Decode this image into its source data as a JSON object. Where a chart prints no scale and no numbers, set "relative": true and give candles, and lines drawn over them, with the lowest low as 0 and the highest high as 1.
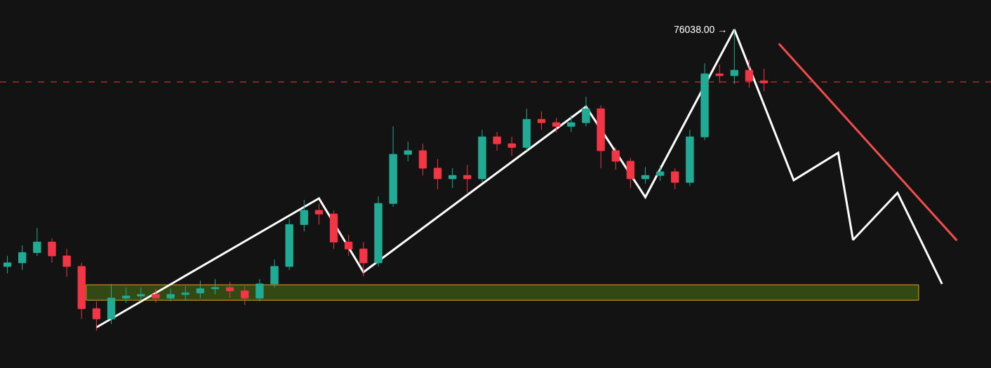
{
  "chart_data": {
    "type": "candlestick",
    "relative": true,
    "categories": [
      null,
      null,
      null,
      null,
      null,
      null,
      null,
      null,
      null,
      null,
      null,
      null,
      null,
      null,
      null,
      null,
      null,
      null,
      null,
      null,
      null,
      null,
      null,
      null,
      null,
      null,
      null,
      null,
      null,
      null,
      null,
      null,
      null,
      null,
      null,
      null,
      null,
      null,
      null,
      null,
      null,
      null,
      null,
      null,
      null,
      null,
      null,
      null,
      null,
      null,
      null,
      null,
      null,
      null,
      null,
      null,
      null,
      null,
      null,
      null,
      null,
      null,
      null,
      null,
      null,
      null
    ],
    "ohlc": [
      [
        0.214,
        0.249,
        0.191,
        0.226
      ],
      [
        0.226,
        0.284,
        0.202,
        0.26
      ],
      [
        0.26,
        0.342,
        0.249,
        0.295
      ],
      [
        0.295,
        0.307,
        0.226,
        0.249
      ],
      [
        0.249,
        0.272,
        0.179,
        0.214
      ],
      [
        0.214,
        0.226,
        0.04,
        0.074
      ],
      [
        0.074,
        0.098,
        0,
        0.04
      ],
      [
        0.04,
        0.156,
        0.023,
        0.109
      ],
      [
        0.109,
        0.144,
        0.093,
        0.116
      ],
      [
        0.116,
        0.144,
        0.098,
        0.121
      ],
      [
        0.121,
        0.14,
        0.093,
        0.109
      ],
      [
        0.109,
        0.14,
        0.098,
        0.121
      ],
      [
        0.121,
        0.149,
        0.102,
        0.126
      ],
      [
        0.126,
        0.167,
        0.109,
        0.14
      ],
      [
        0.14,
        0.172,
        0.121,
        0.144
      ],
      [
        0.144,
        0.163,
        0.109,
        0.133
      ],
      [
        0.133,
        0.149,
        0.086,
        0.109
      ],
      [
        0.109,
        0.172,
        0.098,
        0.156
      ],
      [
        0.156,
        0.237,
        0.144,
        0.214
      ],
      [
        0.214,
        0.372,
        0.202,
        0.353
      ],
      [
        0.353,
        0.435,
        0.33,
        0.4
      ],
      [
        0.4,
        0.423,
        0.353,
        0.388
      ],
      [
        0.388,
        0.4,
        0.272,
        0.295
      ],
      [
        0.295,
        0.319,
        0.249,
        0.272
      ],
      [
        0.272,
        0.295,
        0.181,
        0.226
      ],
      [
        0.226,
        0.447,
        0.214,
        0.423
      ],
      [
        0.423,
        0.679,
        0.412,
        0.586
      ],
      [
        0.586,
        0.628,
        0.563,
        0.598
      ],
      [
        0.598,
        0.621,
        0.516,
        0.54
      ],
      [
        0.54,
        0.57,
        0.47,
        0.505
      ],
      [
        0.505,
        0.54,
        0.474,
        0.516
      ],
      [
        0.516,
        0.551,
        0.458,
        0.505
      ],
      [
        0.505,
        0.667,
        0.493,
        0.644
      ],
      [
        0.644,
        0.66,
        0.598,
        0.621
      ],
      [
        0.621,
        0.644,
        0.581,
        0.609
      ],
      [
        0.609,
        0.737,
        0.598,
        0.702
      ],
      [
        0.702,
        0.728,
        0.667,
        0.691
      ],
      [
        0.691,
        0.707,
        0.658,
        0.679
      ],
      [
        0.679,
        0.716,
        0.66,
        0.691
      ],
      [
        0.691,
        0.777,
        0.679,
        0.737
      ],
      [
        0.737,
        0.749,
        0.54,
        0.598
      ],
      [
        0.598,
        0.609,
        0.535,
        0.563
      ],
      [
        0.563,
        0.574,
        0.474,
        0.505
      ],
      [
        0.505,
        0.544,
        0.488,
        0.516
      ],
      [
        0.516,
        0.549,
        0.498,
        0.528
      ],
      [
        0.528,
        0.54,
        0.47,
        0.493
      ],
      [
        0.493,
        0.667,
        0.481,
        0.644
      ],
      [
        0.644,
        0.888,
        0.633,
        0.853
      ],
      [
        0.853,
        0.884,
        0.823,
        0.847
      ],
      [
        0.847,
        1,
        0.819,
        0.865
      ],
      [
        0.865,
        0.9,
        0.807,
        0.83
      ],
      [
        0.83,
        0.87,
        0.795,
        0.823
      ],
      null,
      null,
      null,
      null,
      null,
      null,
      null,
      null,
      null,
      null,
      null,
      null,
      null,
      null
    ],
    "colors": [
      "#22ab94",
      "#22ab94",
      "#22ab94",
      "#f23645",
      "#f23645",
      "#f23645",
      "#f23645",
      "#22ab94",
      "#22ab94",
      "#22ab94",
      "#f23645",
      "#22ab94",
      "#22ab94",
      "#22ab94",
      "#22ab94",
      "#f23645",
      "#f23645",
      "#22ab94",
      "#22ab94",
      "#22ab94",
      "#22ab94",
      "#f23645",
      "#f23645",
      "#f23645",
      "#f23645",
      "#22ab94",
      "#22ab94",
      "#22ab94",
      "#f23645",
      "#f23645",
      "#22ab94",
      "#f23645",
      "#22ab94",
      "#f23645",
      "#f23645",
      "#22ab94",
      "#f23645",
      "#f23645",
      "#22ab94",
      "#22ab94",
      "#f23645",
      "#f23645",
      "#f23645",
      "#22ab94",
      "#22ab94",
      "#f23645",
      "#22ab94",
      "#22ab94",
      "#f23645",
      "#22ab94",
      "#f23645",
      "#f23645",
      null,
      null,
      null,
      null,
      null,
      null,
      null,
      null,
      null,
      null,
      null,
      null,
      null,
      null
    ],
    "series": [
      {
        "type": "line",
        "color": "#ffffff",
        "values": [
          null,
          null,
          null,
          null,
          null,
          null,
          0.012,
          null,
          null,
          null,
          null,
          null,
          null,
          null,
          null,
          null,
          null,
          null,
          null,
          null,
          null,
          0.44,
          null,
          null,
          0.195,
          null,
          null,
          null,
          null,
          null,
          null,
          null,
          null,
          null,
          null,
          null,
          null,
          null,
          null,
          0.744,
          null,
          null,
          null,
          0.444,
          null,
          null,
          null,
          null,
          null,
          1.0,
          null,
          null,
          null,
          0.5,
          null,
          null,
          0.591,
          0.302,
          null,
          null,
          0.458,
          null,
          null,
          0.156,
          null,
          null
        ]
      },
      {
        "type": "line",
        "color": "#f04d4d",
        "values": [
          null,
          null,
          null,
          null,
          null,
          null,
          null,
          null,
          null,
          null,
          null,
          null,
          null,
          null,
          null,
          null,
          null,
          null,
          null,
          null,
          null,
          null,
          null,
          null,
          null,
          null,
          null,
          null,
          null,
          null,
          null,
          null,
          null,
          null,
          null,
          null,
          null,
          null,
          null,
          null,
          null,
          null,
          null,
          null,
          null,
          null,
          null,
          null,
          null,
          null,
          null,
          null,
          0.953,
          null,
          null,
          null,
          null,
          null,
          null,
          null,
          null,
          null,
          null,
          null,
          0.3,
          null
        ]
      }
    ],
    "ref_lines": [
      {
        "axis": "y",
        "value": 0.826,
        "color": "#f23645",
        "line_style": "dashed"
      }
    ],
    "bands": [
      {
        "axis": "y",
        "from": 0.102,
        "to": 0.153,
        "color": "#e0a21b"
      }
    ],
    "annotations": [
      "76038.00 →"
    ],
    "marker": "none"
  }
}
